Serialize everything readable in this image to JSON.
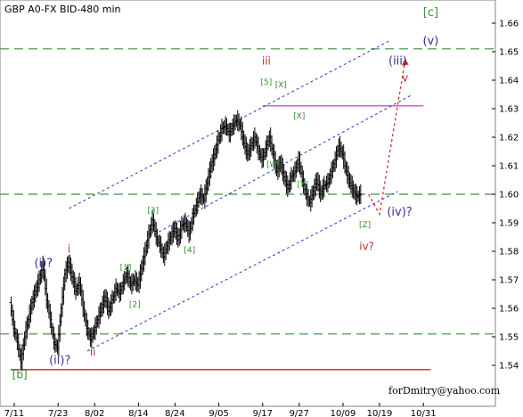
{
  "chart_data": {
    "type": "ohlc",
    "title": "GBP A0-FX BID-480 min",
    "credit": "forDmitry@yahoo.com",
    "y_ticks": [
      "1.66",
      "1.65",
      "1.64",
      "1.63",
      "1.62",
      "1.61",
      "1.60",
      "1.59",
      "1.58",
      "1.57",
      "1.56",
      "1.55",
      "1.54"
    ],
    "ylim": [
      1.5365,
      1.6665
    ],
    "x_ticks": [
      {
        "label": "7/11",
        "day": 0
      },
      {
        "label": "7/23",
        "day": 12
      },
      {
        "label": "8/02",
        "day": 22
      },
      {
        "label": "8/14",
        "day": 34
      },
      {
        "label": "8/24",
        "day": 44
      },
      {
        "label": "9/05",
        "day": 56
      },
      {
        "label": "9/17",
        "day": 68
      },
      {
        "label": "9/27",
        "day": 78
      },
      {
        "label": "10/09",
        "day": 90
      },
      {
        "label": "10/19",
        "day": 100
      },
      {
        "label": "10/31",
        "day": 112
      }
    ],
    "xlim": [
      -2,
      119
    ],
    "series_path": [
      [
        -1,
        1.562
      ],
      [
        0,
        1.553
      ],
      [
        1,
        1.548
      ],
      [
        2,
        1.541
      ],
      [
        3,
        1.55
      ],
      [
        4,
        1.556
      ],
      [
        5,
        1.562
      ],
      [
        6,
        1.566
      ],
      [
        7,
        1.57
      ],
      [
        8,
        1.575
      ],
      [
        9,
        1.563
      ],
      [
        10,
        1.556
      ],
      [
        11,
        1.548
      ],
      [
        12,
        1.546
      ],
      [
        13,
        1.56
      ],
      [
        14,
        1.572
      ],
      [
        15,
        1.576
      ],
      [
        16,
        1.571
      ],
      [
        17,
        1.566
      ],
      [
        18,
        1.569
      ],
      [
        19,
        1.56
      ],
      [
        20,
        1.553
      ],
      [
        21,
        1.549
      ],
      [
        22,
        1.552
      ],
      [
        23,
        1.556
      ],
      [
        24,
        1.56
      ],
      [
        25,
        1.564
      ],
      [
        26,
        1.559
      ],
      [
        27,
        1.563
      ],
      [
        28,
        1.567
      ],
      [
        29,
        1.565
      ],
      [
        30,
        1.569
      ],
      [
        31,
        1.572
      ],
      [
        32,
        1.568
      ],
      [
        33,
        1.57
      ],
      [
        34,
        1.568
      ],
      [
        35,
        1.574
      ],
      [
        36,
        1.58
      ],
      [
        37,
        1.586
      ],
      [
        38,
        1.591
      ],
      [
        39,
        1.585
      ],
      [
        40,
        1.582
      ],
      [
        41,
        1.578
      ],
      [
        42,
        1.582
      ],
      [
        43,
        1.585
      ],
      [
        44,
        1.588
      ],
      [
        45,
        1.584
      ],
      [
        46,
        1.589
      ],
      [
        47,
        1.59
      ],
      [
        48,
        1.586
      ],
      [
        49,
        1.592
      ],
      [
        50,
        1.596
      ],
      [
        51,
        1.6
      ],
      [
        52,
        1.598
      ],
      [
        53,
        1.604
      ],
      [
        54,
        1.61
      ],
      [
        55,
        1.614
      ],
      [
        56,
        1.619
      ],
      [
        57,
        1.623
      ],
      [
        58,
        1.624
      ],
      [
        59,
        1.621
      ],
      [
        60,
        1.624
      ],
      [
        61,
        1.626
      ],
      [
        62,
        1.624
      ],
      [
        63,
        1.618
      ],
      [
        64,
        1.614
      ],
      [
        65,
        1.617
      ],
      [
        66,
        1.62
      ],
      [
        67,
        1.615
      ],
      [
        68,
        1.612
      ],
      [
        69,
        1.616
      ],
      [
        70,
        1.62
      ],
      [
        71,
        1.614
      ],
      [
        72,
        1.608
      ],
      [
        73,
        1.611
      ],
      [
        74,
        1.606
      ],
      [
        75,
        1.602
      ],
      [
        76,
        1.606
      ],
      [
        77,
        1.608
      ],
      [
        78,
        1.612
      ],
      [
        79,
        1.605
      ],
      [
        80,
        1.6
      ],
      [
        81,
        1.597
      ],
      [
        82,
        1.601
      ],
      [
        83,
        1.605
      ],
      [
        84,
        1.6
      ],
      [
        85,
        1.603
      ],
      [
        86,
        1.604
      ],
      [
        87,
        1.608
      ],
      [
        88,
        1.612
      ],
      [
        89,
        1.617
      ],
      [
        90,
        1.614
      ],
      [
        91,
        1.608
      ],
      [
        92,
        1.604
      ],
      [
        93,
        1.601
      ],
      [
        94,
        1.599
      ],
      [
        95,
        1.6
      ]
    ],
    "support_lines": [
      {
        "price": 1.651,
        "style": "green-dashed"
      },
      {
        "price": 1.6,
        "style": "green-dashed"
      },
      {
        "price": 1.551,
        "style": "green-dashed"
      }
    ],
    "resistance_line": {
      "price": 1.631,
      "day_from": 68,
      "day_to": 112
    },
    "base_line": {
      "price": 1.5385,
      "day_from": -1,
      "day_to": 114
    },
    "channel_lines": [
      {
        "from": [
          15,
          1.595
        ],
        "to": [
          103,
          1.654
        ]
      },
      {
        "from": [
          37,
          1.585
        ],
        "to": [
          109,
          1.635
        ]
      },
      {
        "from": [
          20,
          1.545
        ],
        "to": [
          105,
          1.601
        ]
      }
    ],
    "forecast_path": [
      [
        97,
        1.6
      ],
      [
        100,
        1.593
      ],
      [
        107,
        1.647
      ]
    ],
    "wave_labels": [
      {
        "text": "[c]",
        "day": 114,
        "price": 1.6625,
        "color": "#3f8f3f",
        "size": 13
      },
      {
        "text": "(v)",
        "day": 114,
        "price": 1.6525,
        "color": "#333399",
        "size": 13
      },
      {
        "text": "(iii)",
        "day": 105,
        "price": 1.6455,
        "color": "#333399",
        "size": 13
      },
      {
        "text": "v",
        "day": 107,
        "price": 1.6395,
        "color": "#c03030",
        "size": 12
      },
      {
        "text": "iii",
        "day": 69,
        "price": 1.6455,
        "color": "#c03030",
        "size": 12
      },
      {
        "text": "[5]",
        "day": 69,
        "price": 1.6385,
        "color": "#2f8f2f",
        "size": 9
      },
      {
        "text": "[X]",
        "day": 73,
        "price": 1.6375,
        "color": "#2f8f2f",
        "size": 9
      },
      {
        "text": "[X]",
        "day": 78,
        "price": 1.6265,
        "color": "#2f8f2f",
        "size": 9
      },
      {
        "text": "[W]",
        "day": 71,
        "price": 1.6095,
        "color": "#2f8f2f",
        "size": 9
      },
      {
        "text": "[Y]",
        "day": 79,
        "price": 1.6025,
        "color": "#2f8f2f",
        "size": 9
      },
      {
        "text": "[Z]",
        "day": 96,
        "price": 1.5885,
        "color": "#2f8f2f",
        "size": 9
      },
      {
        "text": "(iv)?",
        "day": 105.5,
        "price": 1.5925,
        "color": "#333399",
        "size": 13
      },
      {
        "text": "iv?",
        "day": 96.5,
        "price": 1.5805,
        "color": "#c03030",
        "size": 12
      },
      {
        "text": "[3]",
        "day": 38,
        "price": 1.5935,
        "color": "#2f8f2f",
        "size": 9
      },
      {
        "text": "[4]",
        "day": 48,
        "price": 1.5795,
        "color": "#2f8f2f",
        "size": 9
      },
      {
        "text": "[1]",
        "day": 30.5,
        "price": 1.5735,
        "color": "#2f8f2f",
        "size": 9
      },
      {
        "text": "[2]",
        "day": 33,
        "price": 1.5605,
        "color": "#2f8f2f",
        "size": 9
      },
      {
        "text": "i",
        "day": 15,
        "price": 1.5795,
        "color": "#c03030",
        "size": 12
      },
      {
        "text": "(i)?",
        "day": 8,
        "price": 1.5745,
        "color": "#333399",
        "size": 13
      },
      {
        "text": "ii",
        "day": 21.5,
        "price": 1.5435,
        "color": "#c03030",
        "size": 12
      },
      {
        "text": "(ii)?",
        "day": 12.5,
        "price": 1.5405,
        "color": "#333399",
        "size": 13
      },
      {
        "text": "[b]",
        "day": 1.5,
        "price": 1.5355,
        "color": "#2f8f2f",
        "size": 12
      }
    ]
  }
}
